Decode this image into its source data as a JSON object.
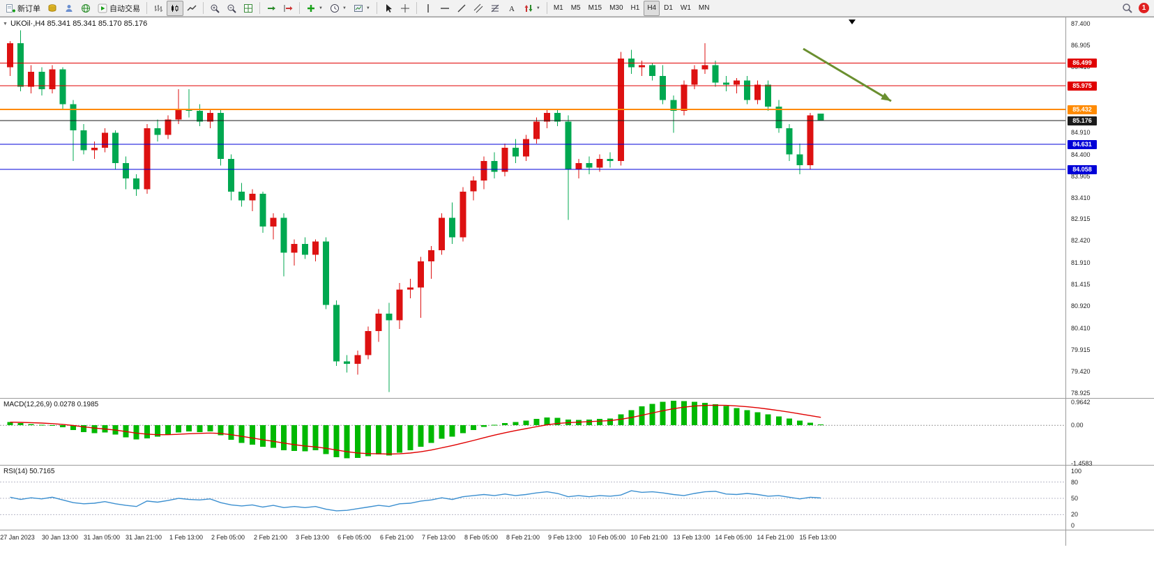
{
  "toolbar": {
    "new_order_label": "新订单",
    "autotrade_label": "自动交易",
    "timeframes": [
      "M1",
      "M5",
      "M15",
      "M30",
      "H1",
      "H4",
      "D1",
      "W1",
      "MN"
    ],
    "active_timeframe": "H4",
    "alert_badge": "1",
    "icons": [
      "new-order-icon",
      "accounts-icon",
      "profile-icon",
      "web-icon",
      "autotrading-play-icon",
      "ohlc-bars-icon",
      "candlestick-icon",
      "line-chart-icon",
      "zoom-in-icon",
      "zoom-out-icon",
      "tile-windows-icon",
      "auto-scroll-icon",
      "chart-shift-icon",
      "indicators-plus-icon",
      "periods-clock-icon",
      "template-icon",
      "cursor-icon",
      "crosshair-icon",
      "vertical-line-icon",
      "horizontal-line-icon",
      "trendline-icon",
      "channel-icon",
      "fibonacci-icon",
      "text-tool-icon",
      "arrows-tool-icon",
      "search-icon"
    ]
  },
  "symbol_info": {
    "collapse_icon": "▼",
    "text": "UKOil·,H4  85.341 85.341 85.170 85.176"
  },
  "chart_data": {
    "type": "candlestick",
    "symbol": "UKOil",
    "period": "H4",
    "ohlc_display": {
      "open": "85.341",
      "high": "85.341",
      "low": "85.170",
      "close": "85.176"
    },
    "up_color": "#dd1111",
    "down_color": "#00a850",
    "ylim": [
      78.9,
      87.55
    ],
    "candles": [
      [
        86.4,
        87.0,
        86.2,
        86.95
      ],
      [
        86.95,
        87.25,
        85.85,
        85.95
      ],
      [
        85.95,
        86.45,
        85.8,
        86.3
      ],
      [
        86.3,
        86.4,
        85.75,
        85.9
      ],
      [
        85.9,
        86.45,
        85.8,
        86.35
      ],
      [
        86.35,
        86.4,
        85.45,
        85.55
      ],
      [
        85.55,
        85.65,
        84.25,
        84.95
      ],
      [
        84.95,
        85.1,
        84.4,
        84.5
      ],
      [
        84.5,
        84.7,
        84.3,
        84.55
      ],
      [
        84.55,
        85.0,
        84.45,
        84.9
      ],
      [
        84.9,
        84.95,
        84.05,
        84.2
      ],
      [
        84.2,
        84.35,
        83.6,
        83.85
      ],
      [
        83.85,
        83.95,
        83.45,
        83.6
      ],
      [
        83.6,
        85.1,
        83.5,
        85.0
      ],
      [
        85.0,
        85.2,
        84.7,
        84.85
      ],
      [
        84.85,
        85.3,
        84.75,
        85.2
      ],
      [
        85.2,
        85.9,
        85.1,
        85.45
      ],
      [
        85.45,
        85.9,
        85.25,
        85.4
      ],
      [
        85.4,
        85.55,
        85.05,
        85.15
      ],
      [
        85.15,
        85.45,
        85.0,
        85.35
      ],
      [
        85.35,
        85.45,
        84.15,
        84.3
      ],
      [
        84.3,
        84.4,
        83.35,
        83.55
      ],
      [
        83.55,
        83.75,
        83.2,
        83.35
      ],
      [
        83.35,
        83.6,
        83.1,
        83.5
      ],
      [
        83.5,
        83.55,
        82.6,
        82.75
      ],
      [
        82.75,
        83.05,
        82.45,
        82.95
      ],
      [
        82.95,
        83.05,
        81.6,
        82.15
      ],
      [
        82.15,
        82.45,
        81.85,
        82.35
      ],
      [
        82.35,
        82.5,
        82.0,
        82.1
      ],
      [
        82.1,
        82.45,
        81.95,
        82.4
      ],
      [
        82.4,
        82.5,
        80.85,
        80.95
      ],
      [
        80.95,
        81.05,
        79.55,
        79.65
      ],
      [
        79.65,
        79.8,
        79.4,
        79.6
      ],
      [
        79.6,
        79.9,
        79.35,
        79.8
      ],
      [
        79.8,
        80.45,
        79.7,
        80.35
      ],
      [
        80.35,
        80.85,
        80.1,
        80.75
      ],
      [
        80.75,
        81.0,
        78.95,
        80.6
      ],
      [
        80.6,
        81.45,
        80.4,
        81.3
      ],
      [
        81.3,
        81.55,
        81.1,
        81.35
      ],
      [
        81.35,
        82.05,
        80.65,
        81.95
      ],
      [
        81.95,
        82.3,
        81.55,
        82.2
      ],
      [
        82.2,
        83.05,
        82.1,
        82.95
      ],
      [
        82.95,
        83.3,
        82.35,
        82.5
      ],
      [
        82.5,
        83.65,
        82.4,
        83.55
      ],
      [
        83.55,
        83.9,
        83.35,
        83.8
      ],
      [
        83.8,
        84.35,
        83.6,
        84.25
      ],
      [
        84.25,
        84.45,
        83.85,
        84.0
      ],
      [
        84.0,
        84.65,
        83.9,
        84.55
      ],
      [
        84.55,
        84.75,
        84.2,
        84.35
      ],
      [
        84.35,
        84.85,
        84.25,
        84.75
      ],
      [
        84.75,
        85.25,
        84.65,
        85.15
      ],
      [
        85.15,
        85.45,
        85.0,
        85.35
      ],
      [
        85.35,
        85.45,
        85.05,
        85.15
      ],
      [
        85.15,
        85.3,
        82.9,
        84.05
      ],
      [
        84.05,
        84.3,
        83.85,
        84.2
      ],
      [
        84.2,
        84.35,
        83.95,
        84.1
      ],
      [
        84.1,
        84.4,
        84.0,
        84.3
      ],
      [
        84.3,
        84.45,
        84.1,
        84.25
      ],
      [
        84.25,
        86.75,
        84.15,
        86.6
      ],
      [
        86.6,
        86.8,
        86.25,
        86.4
      ],
      [
        86.4,
        86.55,
        86.2,
        86.45
      ],
      [
        86.45,
        86.5,
        86.1,
        86.2
      ],
      [
        86.2,
        86.45,
        85.55,
        85.65
      ],
      [
        85.65,
        85.75,
        84.9,
        85.4
      ],
      [
        85.4,
        86.1,
        85.3,
        86.0
      ],
      [
        86.0,
        86.45,
        85.9,
        86.35
      ],
      [
        86.35,
        86.95,
        86.25,
        86.45
      ],
      [
        86.45,
        86.55,
        85.95,
        86.05
      ],
      [
        86.05,
        86.2,
        85.85,
        86.0
      ],
      [
        86.0,
        86.15,
        85.8,
        86.1
      ],
      [
        86.1,
        86.2,
        85.55,
        85.65
      ],
      [
        85.65,
        86.1,
        85.55,
        86.0
      ],
      [
        86.0,
        86.1,
        85.4,
        85.5
      ],
      [
        85.5,
        85.65,
        84.9,
        85.0
      ],
      [
        85.0,
        85.1,
        84.25,
        84.4
      ],
      [
        84.4,
        84.65,
        83.95,
        84.15
      ],
      [
        84.15,
        85.35,
        84.05,
        85.3
      ],
      [
        85.34,
        85.34,
        85.17,
        85.18
      ]
    ],
    "x_labels": [
      "27 Jan 2023",
      "30 Jan 13:00",
      "31 Jan 05:00",
      "31 Jan 21:00",
      "1 Feb 13:00",
      "2 Feb 05:00",
      "2 Feb 21:00",
      "3 Feb 13:00",
      "6 Feb 05:00",
      "6 Feb 21:00",
      "7 Feb 13:00",
      "8 Feb 05:00",
      "8 Feb 21:00",
      "9 Feb 13:00",
      "10 Feb 05:00",
      "10 Feb 21:00",
      "13 Feb 13:00",
      "14 Feb 05:00",
      "14 Feb 21:00",
      "15 Feb 13:00"
    ],
    "y_axis_labels": [
      "87.400",
      "86.905",
      "86.410",
      "85.910",
      "85.420",
      "84.910",
      "84.400",
      "83.905",
      "83.410",
      "82.915",
      "82.420",
      "81.910",
      "81.415",
      "80.920",
      "80.410",
      "79.915",
      "79.420",
      "78.925"
    ],
    "hlines": [
      {
        "price": 86.499,
        "label": "86.499",
        "color": "#e00000",
        "width": 1
      },
      {
        "price": 85.975,
        "label": "85.975",
        "color": "#e00000",
        "width": 1
      },
      {
        "price": 85.432,
        "label": "85.432",
        "color": "#ff8a00",
        "width": 2
      },
      {
        "price": 85.176,
        "label": "85.176",
        "color": "#1b1b1b",
        "width": 1
      },
      {
        "price": 84.631,
        "label": "84.631",
        "color": "#0000d8",
        "width": 1
      },
      {
        "price": 84.058,
        "label": "84.058",
        "color": "#0000d8",
        "width": 1
      }
    ],
    "annotation_arrow": {
      "from": [
        1152,
        45
      ],
      "to": [
        1278,
        120
      ],
      "color": "#6a8f2f"
    },
    "shift_marker_x": 1222,
    "indicators": [
      {
        "name": "MACD",
        "label": "MACD(12,26,9) 0.0278 0.1985",
        "axis_labels": [
          "0.9642",
          "0.00",
          "-1.4583"
        ],
        "ylim": [
          -1.4583,
          0.9642
        ],
        "histogram_color": "#00b800",
        "signal_color": "#e00000",
        "histogram": [
          0.12,
          0.08,
          0.05,
          0.02,
          -0.02,
          -0.08,
          -0.18,
          -0.26,
          -0.3,
          -0.28,
          -0.36,
          -0.46,
          -0.54,
          -0.5,
          -0.44,
          -0.36,
          -0.28,
          -0.24,
          -0.26,
          -0.24,
          -0.38,
          -0.55,
          -0.68,
          -0.74,
          -0.82,
          -0.86,
          -0.95,
          -0.98,
          -1.0,
          -0.96,
          -1.1,
          -1.22,
          -1.26,
          -1.25,
          -1.18,
          -1.12,
          -1.15,
          -1.05,
          -0.95,
          -0.82,
          -0.68,
          -0.52,
          -0.44,
          -0.3,
          -0.18,
          -0.06,
          0.02,
          0.08,
          0.12,
          0.18,
          0.24,
          0.3,
          0.28,
          0.22,
          0.2,
          0.22,
          0.24,
          0.26,
          0.42,
          0.58,
          0.72,
          0.82,
          0.9,
          0.94,
          0.93,
          0.9,
          0.86,
          0.8,
          0.74,
          0.66,
          0.58,
          0.5,
          0.42,
          0.34,
          0.26,
          0.18,
          0.1,
          0.03
        ]
      },
      {
        "name": "RSI",
        "label": "RSI(14) 50.7165",
        "axis_labels": [
          "100",
          "80",
          "50",
          "20",
          "0"
        ],
        "levels": [
          80,
          50,
          20
        ],
        "ylim": [
          0,
          100
        ],
        "line_color": "#3b8fd0",
        "values": [
          52,
          48,
          51,
          49,
          52,
          47,
          42,
          40,
          41,
          44,
          40,
          37,
          35,
          45,
          43,
          46,
          50,
          48,
          47,
          49,
          42,
          38,
          36,
          38,
          34,
          37,
          33,
          35,
          33,
          35,
          30,
          27,
          28,
          31,
          34,
          37,
          35,
          40,
          41,
          45,
          47,
          51,
          48,
          53,
          55,
          57,
          55,
          58,
          55,
          57,
          60,
          62,
          59,
          53,
          55,
          53,
          55,
          54,
          56,
          64,
          61,
          62,
          60,
          57,
          55,
          59,
          62,
          63,
          58,
          57,
          59,
          57,
          54,
          55,
          52,
          49,
          52,
          50.7
        ]
      }
    ]
  }
}
